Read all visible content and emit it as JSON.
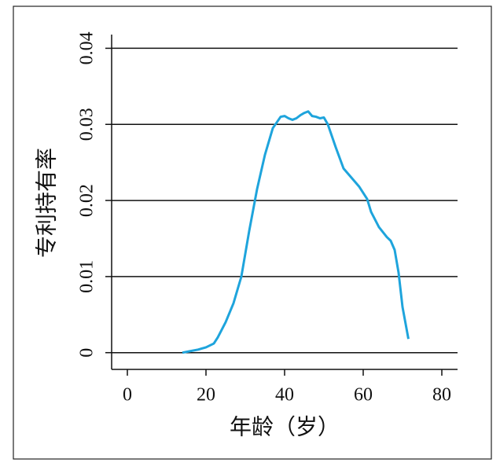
{
  "chart_data": {
    "type": "line",
    "x_label": "年龄（岁）",
    "y_label": "专利持有率",
    "xlim": [
      -4,
      84
    ],
    "xticks": [
      0,
      20,
      40,
      60,
      80
    ],
    "ylim": [
      -0.0022,
      0.0418
    ],
    "yticks": [
      0,
      0.01,
      0.02,
      0.03,
      0.04
    ],
    "grid": true,
    "series": [
      {
        "color": "#1ea4dc",
        "x": [
          14,
          16,
          18,
          20,
          22,
          23,
          25,
          27,
          29,
          31,
          33,
          35,
          37,
          39,
          40,
          41,
          42,
          43,
          44,
          45,
          46,
          47,
          48,
          49,
          50,
          51,
          53,
          55,
          57,
          59,
          61,
          62,
          64,
          66,
          67,
          68,
          68.5,
          69,
          70,
          71.5
        ],
        "values": [
          0,
          0.0002,
          0.0004,
          0.0007,
          0.0012,
          0.002,
          0.004,
          0.0065,
          0.01,
          0.016,
          0.0215,
          0.026,
          0.0295,
          0.031,
          0.0311,
          0.0308,
          0.0306,
          0.0308,
          0.0312,
          0.0315,
          0.0317,
          0.0311,
          0.031,
          0.0308,
          0.0309,
          0.03,
          0.027,
          0.0242,
          0.023,
          0.0218,
          0.0202,
          0.0185,
          0.0165,
          0.0152,
          0.0147,
          0.0135,
          0.012,
          0.0105,
          0.006,
          0.0018
        ]
      }
    ]
  }
}
